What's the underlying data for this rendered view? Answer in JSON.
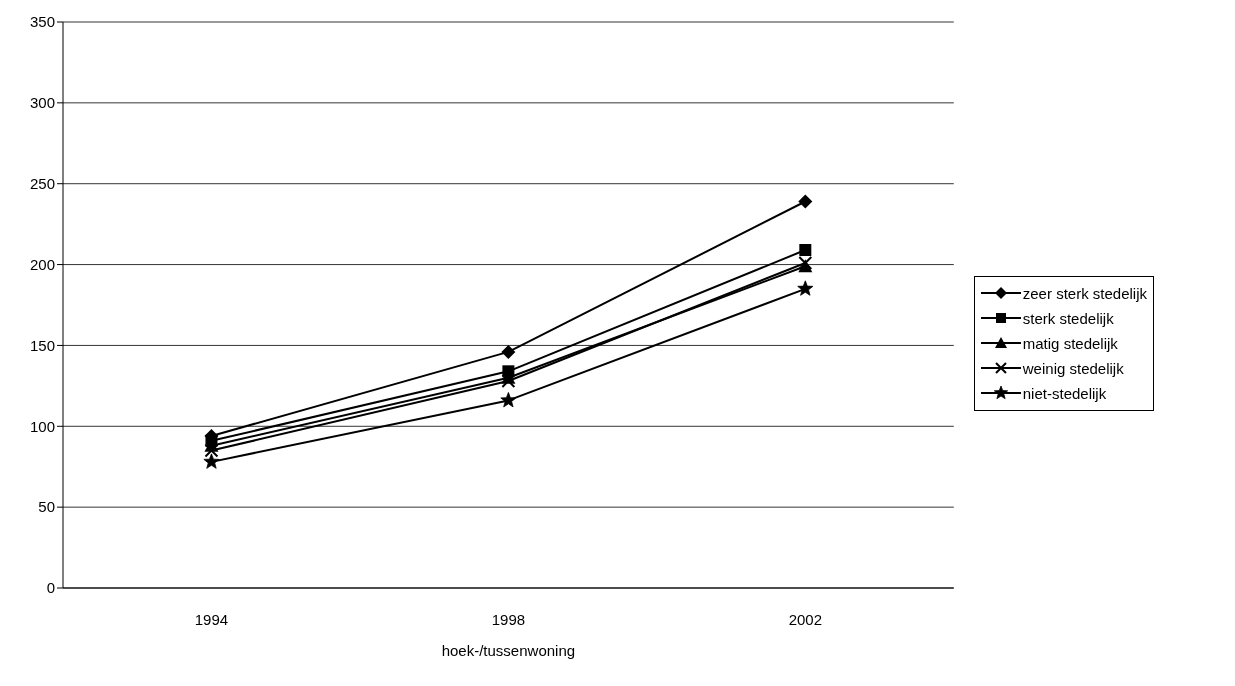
{
  "chart_data": {
    "type": "line",
    "xlabel": "hoek-/tussenwoning",
    "categories": [
      "1994",
      "1998",
      "2002"
    ],
    "series": [
      {
        "name": "zeer sterk stedelijk",
        "color": "#000000",
        "marker": "diamond",
        "values": [
          94,
          146,
          239
        ]
      },
      {
        "name": "sterk stedelijk",
        "color": "#000000",
        "marker": "square",
        "values": [
          91,
          134,
          209
        ]
      },
      {
        "name": "matig stedelijk",
        "color": "#000000",
        "marker": "triangle",
        "values": [
          88,
          130,
          199
        ]
      },
      {
        "name": "weinig stedelijk",
        "color": "#000000",
        "marker": "cross",
        "values": [
          85,
          128,
          201
        ]
      },
      {
        "name": "niet-stedelijk",
        "color": "#000000",
        "marker": "star",
        "values": [
          78,
          116,
          185
        ]
      }
    ],
    "ylim": [
      0,
      350
    ],
    "yticks": [
      0,
      50,
      100,
      150,
      200,
      250,
      300,
      350
    ],
    "grid": "y",
    "legend": "right",
    "line_style": "solid"
  }
}
